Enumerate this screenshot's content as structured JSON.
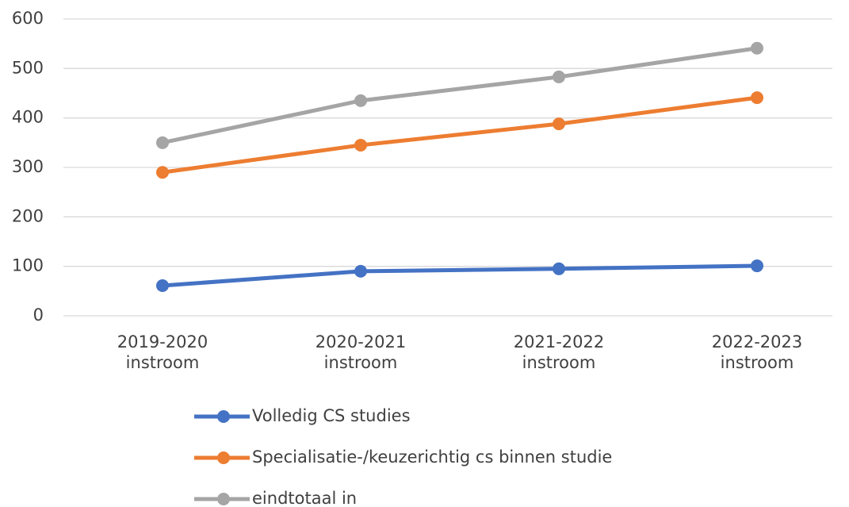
{
  "chart_data": {
    "type": "line",
    "categories": [
      "2019-2020 instroom",
      "2020-2021 instroom",
      "2021-2022 instroom",
      "2022-2023 instroom"
    ],
    "series": [
      {
        "name": "Volledig CS studies",
        "color": "#4472c4",
        "values": [
          61,
          90,
          95,
          101
        ]
      },
      {
        "name": "Specialisatie-/keuzerichtig cs binnen studie",
        "color": "#ed7d31",
        "values": [
          290,
          345,
          388,
          441
        ]
      },
      {
        "name": "eindtotaal in",
        "color": "#a5a5a5",
        "values": [
          350,
          435,
          483,
          541
        ]
      }
    ],
    "ylim": [
      0,
      600
    ],
    "yticks": [
      0,
      100,
      200,
      300,
      400,
      500,
      600
    ],
    "grid": true,
    "legend": "bottom"
  }
}
